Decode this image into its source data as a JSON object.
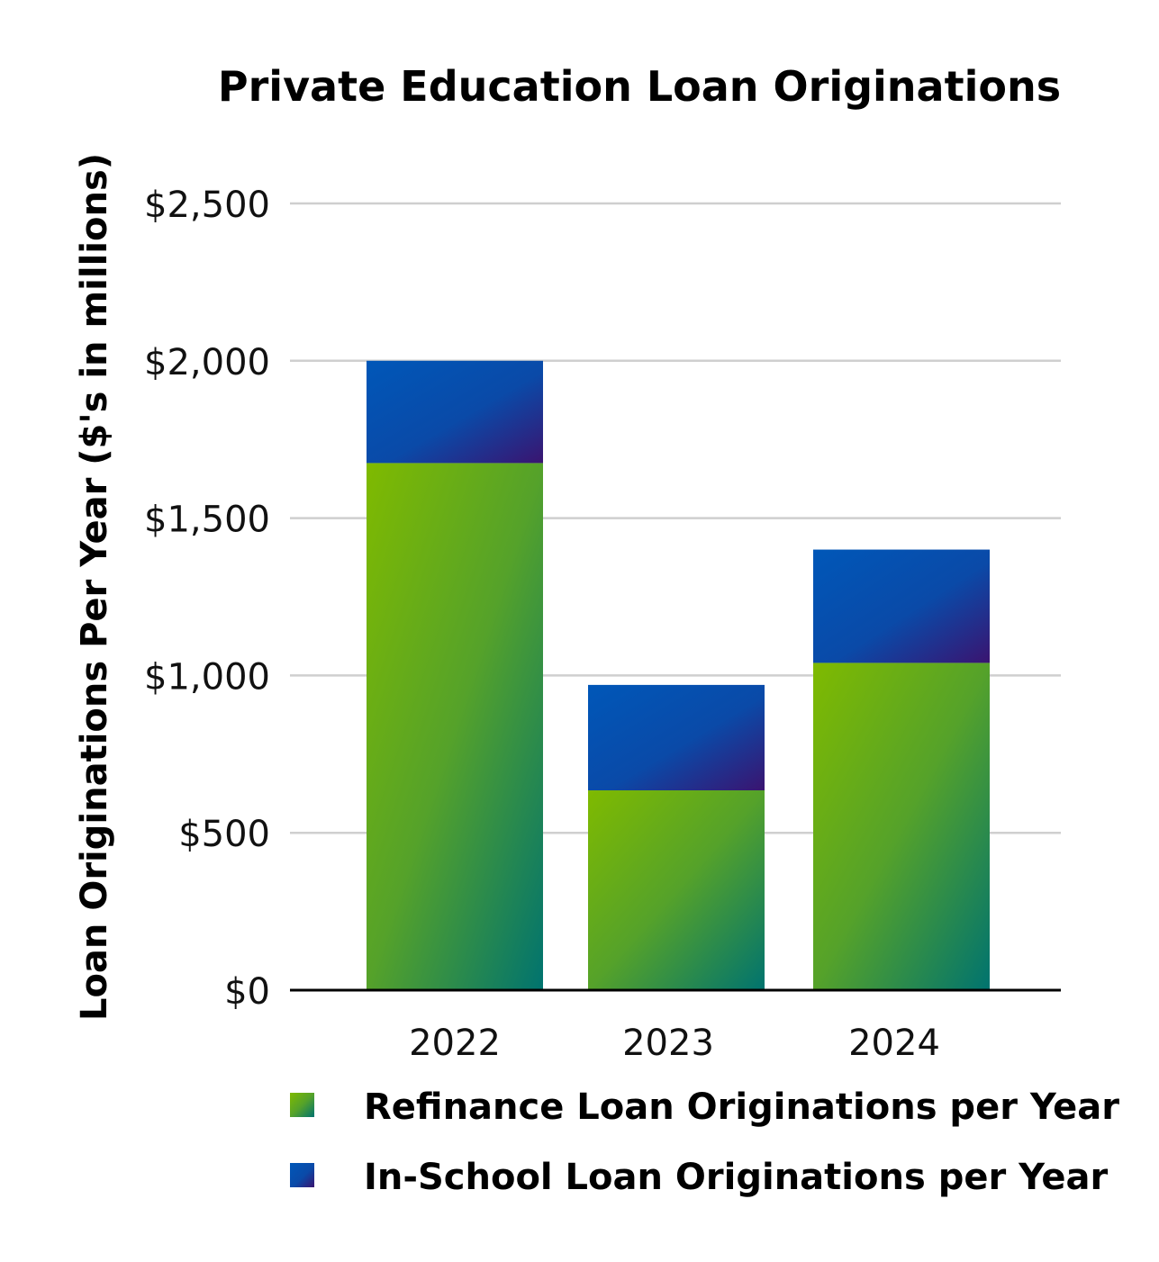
{
  "chart_data": {
    "type": "bar",
    "stacked": true,
    "title": "Private Education Loan Originations",
    "xlabel": "",
    "ylabel": "Loan Originations Per Year ($'s in millions)",
    "categories": [
      "2022",
      "2023",
      "2024"
    ],
    "series": [
      {
        "name": "Refinance Loan Originations per Year",
        "values": [
          1675,
          635,
          1040
        ],
        "color_top": "#7fba00",
        "color_bottom": "#00736f"
      },
      {
        "name": "In-School Loan Originations per Year",
        "values": [
          325,
          335,
          360
        ],
        "color_top": "#0057b8",
        "color_bottom": "#3a1470"
      }
    ],
    "ylim": [
      0,
      2500
    ],
    "yticks": [
      0,
      500,
      1000,
      1500,
      2000,
      2500
    ],
    "ytick_labels": [
      "$0",
      "$500",
      "$1,000",
      "$1,500",
      "$2,000",
      "$2,500"
    ],
    "grid": true,
    "legend_position": "bottom"
  }
}
